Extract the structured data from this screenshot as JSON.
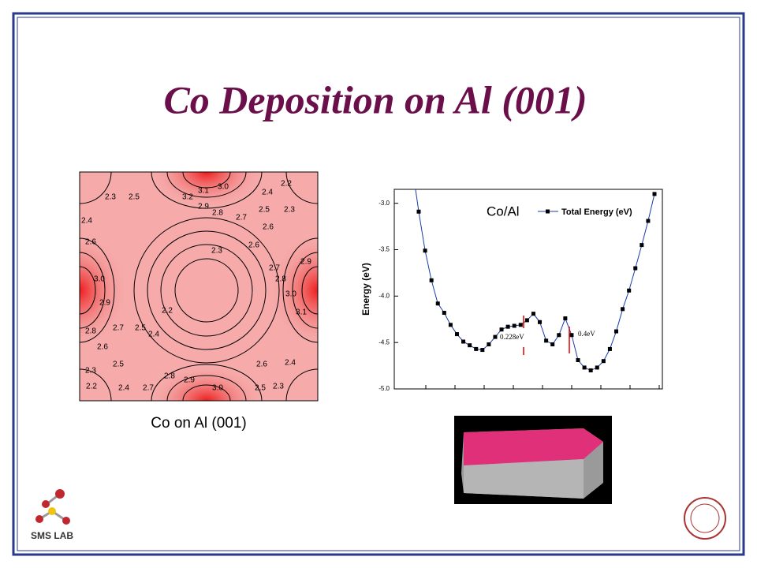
{
  "slide": {
    "title": "Co Deposition on Al (001)",
    "caption": "Co on Al (001)",
    "logo_text": "SMS LAB",
    "contour_labels": [
      "2.2",
      "3.0",
      "3.1",
      "3.2",
      "2.3",
      "2.5",
      "2.4",
      "2.9",
      "2.8",
      "2.7",
      "2.5",
      "2.3",
      "2.4",
      "2.6",
      "2.6",
      "2.6",
      "2.3",
      "2.9",
      "2.7",
      "2.8",
      "3.0",
      "3.0",
      "2.9",
      "2.2",
      "3.1",
      "2.8",
      "2.7",
      "2.5",
      "2.4",
      "2.6",
      "2.5",
      "2.6",
      "2.4",
      "2.3",
      "2.8",
      "2.9",
      "2.2",
      "2.4",
      "2.7",
      "3.0",
      "2.5",
      "2.3"
    ]
  },
  "chart_data": {
    "type": "line",
    "ylabel": "Energy (eV)",
    "annotations": [
      "Co/Al",
      "0.228eV",
      "0.4eV"
    ],
    "ylim": [
      -5.0,
      -2.85
    ],
    "yticks": [
      {
        "value": -3.0,
        "label": "-3.0"
      },
      {
        "value": -3.5,
        "label": "-3.5"
      },
      {
        "value": -4.0,
        "label": "-4.0"
      },
      {
        "value": -4.5,
        "label": "-4.5"
      },
      {
        "value": -5.0,
        "label": "-5.0"
      }
    ],
    "series": [
      {
        "name": "Total Energy (eV)",
        "color": "#000000",
        "line_color": "#1a3caa",
        "values": [
          -3.09,
          -3.51,
          -3.83,
          -4.08,
          -4.18,
          -4.31,
          -4.41,
          -4.49,
          -4.53,
          -4.57,
          -4.58,
          -4.52,
          -4.44,
          -4.36,
          -4.33,
          -4.32,
          -4.31,
          -4.26,
          -4.19,
          -4.28,
          -4.48,
          -4.52,
          -4.42,
          -4.24,
          -4.42,
          -4.69,
          -4.77,
          -4.8,
          -4.77,
          -4.7,
          -4.57,
          -4.38,
          -4.14,
          -3.94,
          -3.7,
          -3.45,
          -3.19,
          -2.9
        ]
      }
    ]
  }
}
